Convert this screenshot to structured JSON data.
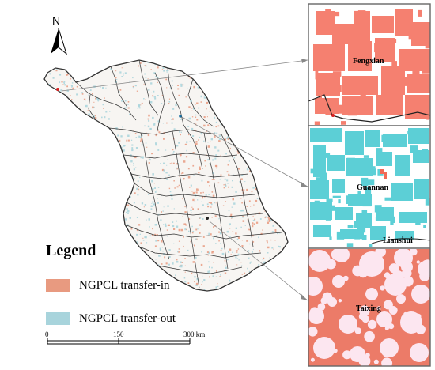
{
  "north_arrow": {
    "letter": "N"
  },
  "legend": {
    "title": "Legend",
    "items": [
      {
        "label": "NGPCL transfer-in",
        "color": "#e89a80"
      },
      {
        "label": "NGPCL transfer-out",
        "color": "#a8d4dc"
      }
    ]
  },
  "scale_bar": {
    "ticks": [
      "0",
      "150",
      "300 km"
    ]
  },
  "insets": [
    {
      "name": "Fengxian",
      "labels": [
        "Fengxian"
      ],
      "fill": "#f58070"
    },
    {
      "name": "Guannan",
      "labels": [
        "Guannan",
        "Lianshui"
      ],
      "fill": "#5ccfd6"
    },
    {
      "name": "Taixing",
      "labels": [
        "Taixing"
      ],
      "fill": "#ec7b68"
    }
  ],
  "colors": {
    "boundary": "#333333",
    "inset_frame": "#666666",
    "leader_line": "#888888"
  }
}
